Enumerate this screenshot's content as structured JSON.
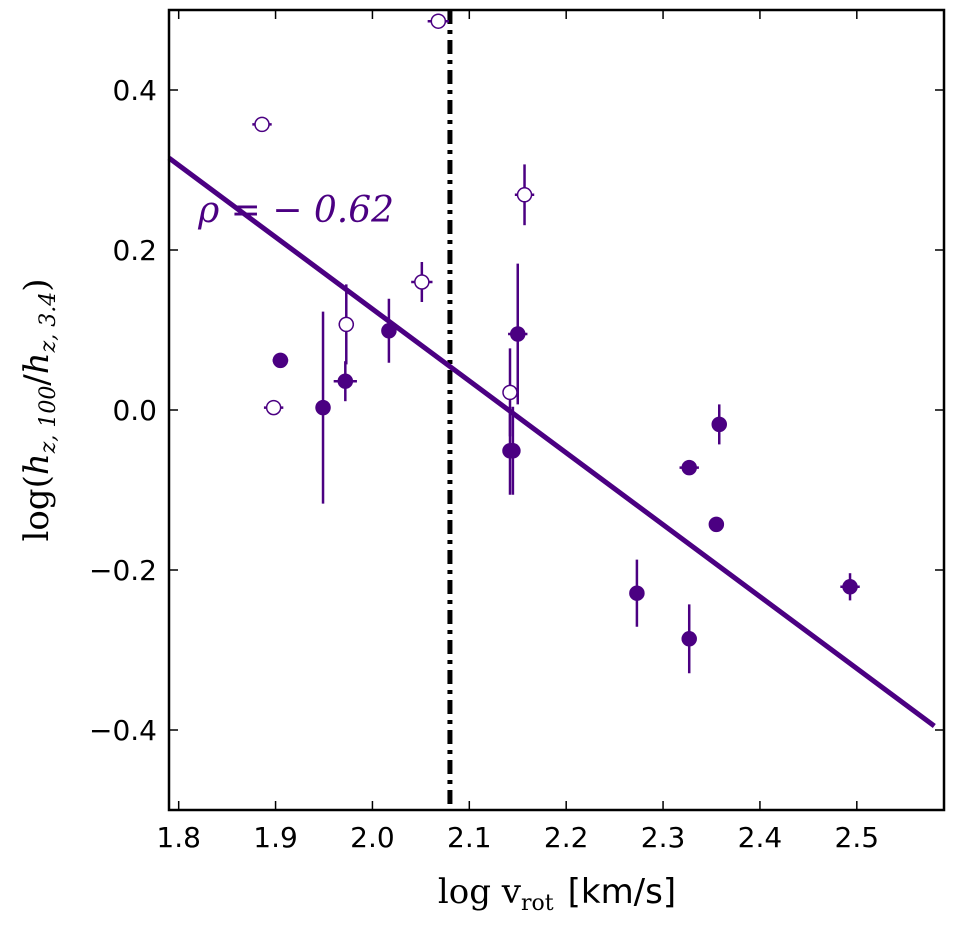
{
  "chart_data": {
    "type": "scatter",
    "title": "",
    "xlabel": "log v_rot [km/s]",
    "xlabel_math": "log v",
    "xlabel_sub": "rot",
    "xlabel_unit": "[km/s]",
    "ylabel": "log(h_z,100/h_z,3.4)",
    "ylabel_prefix": "log(",
    "ylabel_h1": "h",
    "ylabel_sub1": "z, 100",
    "ylabel_slash": "/",
    "ylabel_h2": "h",
    "ylabel_sub2": "z, 3.4",
    "ylabel_suffix": ")",
    "xlim": [
      1.79,
      2.59
    ],
    "ylim": [
      -0.5,
      0.5
    ],
    "xticks": [
      "1.8",
      "1.9",
      "2.0",
      "2.1",
      "2.2",
      "2.3",
      "2.4",
      "2.5"
    ],
    "yticks": [
      "−0.4",
      "−0.2",
      "0.0",
      "0.2",
      "0.4"
    ],
    "color": "#4B0082",
    "grid": false,
    "annotation": {
      "text": "ρ = − 0.62",
      "x": 1.82,
      "y": 0.235
    },
    "fit_line": {
      "x": [
        1.79,
        2.58
      ],
      "y": [
        0.315,
        -0.395
      ]
    },
    "vertical_line": {
      "x": 2.08,
      "style": "dash-dot"
    },
    "series": [
      {
        "filled": true,
        "points": [
          {
            "x": 1.905,
            "y": 0.062,
            "xerr": 0.008,
            "yerr": 0.005
          },
          {
            "x": 1.949,
            "y": 0.003,
            "xerr": 0.003,
            "yerr": 0.12
          },
          {
            "x": 1.972,
            "y": 0.036,
            "xerr": 0.012,
            "yerr": 0.025
          },
          {
            "x": 2.017,
            "y": 0.099,
            "xerr": 0.005,
            "yerr": 0.04
          },
          {
            "x": 2.142,
            "y": -0.051,
            "xerr": 0.007,
            "yerr": 0.055
          },
          {
            "x": 2.145,
            "y": -0.051,
            "xerr": 0.005,
            "yerr": 0.055
          },
          {
            "x": 2.15,
            "y": 0.095,
            "xerr": 0.01,
            "yerr": 0.088
          },
          {
            "x": 2.273,
            "y": -0.229,
            "xerr": 0.007,
            "yerr": 0.042
          },
          {
            "x": 2.327,
            "y": -0.072,
            "xerr": 0.01,
            "yerr": 0.007
          },
          {
            "x": 2.327,
            "y": -0.286,
            "xerr": 0.004,
            "yerr": 0.043
          },
          {
            "x": 2.355,
            "y": -0.143,
            "xerr": 0.007,
            "yerr": 0.007
          },
          {
            "x": 2.358,
            "y": -0.018,
            "xerr": 0.004,
            "yerr": 0.025
          },
          {
            "x": 2.493,
            "y": -0.221,
            "xerr": 0.01,
            "yerr": 0.017
          }
        ]
      },
      {
        "filled": false,
        "points": [
          {
            "x": 1.886,
            "y": 0.357,
            "xerr": 0.01,
            "yerr": 0.004
          },
          {
            "x": 1.898,
            "y": 0.003,
            "xerr": 0.01,
            "yerr": 0.007
          },
          {
            "x": 1.973,
            "y": 0.107,
            "xerr": 0.008,
            "yerr": 0.05
          },
          {
            "x": 2.051,
            "y": 0.16,
            "xerr": 0.011,
            "yerr": 0.025
          },
          {
            "x": 2.068,
            "y": 0.486,
            "xerr": 0.011,
            "yerr": 0.004
          },
          {
            "x": 2.142,
            "y": 0.022,
            "xerr": 0.007,
            "yerr": 0.055
          },
          {
            "x": 2.157,
            "y": 0.269,
            "xerr": 0.01,
            "yerr": 0.038
          }
        ]
      }
    ]
  }
}
